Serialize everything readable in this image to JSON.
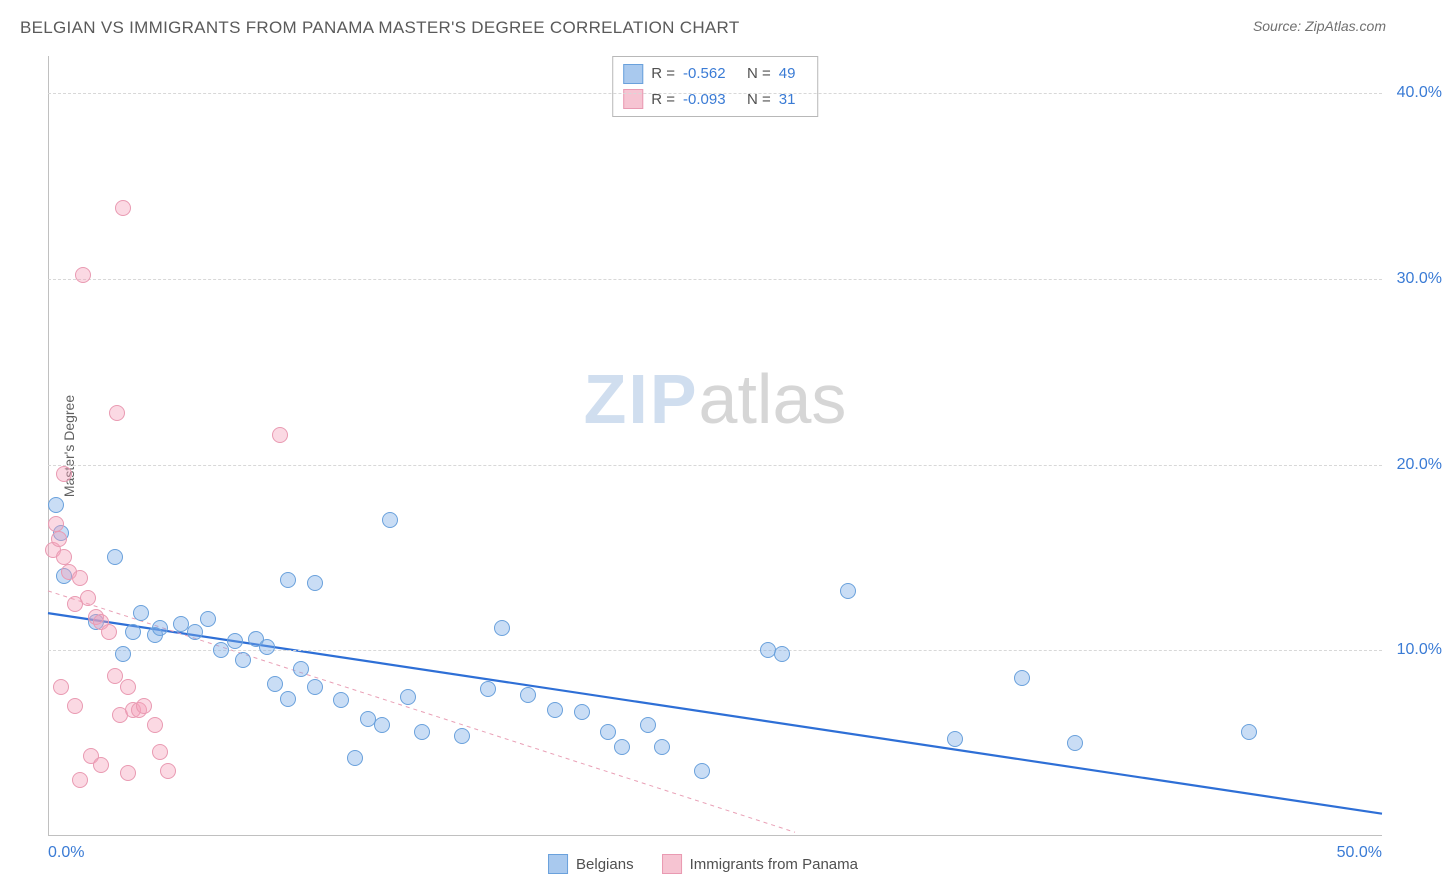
{
  "header": {
    "title": "BELGIAN VS IMMIGRANTS FROM PANAMA MASTER'S DEGREE CORRELATION CHART",
    "source": "Source: ZipAtlas.com"
  },
  "watermark": {
    "zip": "ZIP",
    "atlas": "atlas"
  },
  "chart": {
    "type": "scatter",
    "ylabel": "Master's Degree",
    "xlim": [
      0,
      50
    ],
    "ylim": [
      0,
      42
    ],
    "x_ticks": [
      {
        "pos": 0,
        "label": "0.0%",
        "align": "left"
      },
      {
        "pos": 50,
        "label": "50.0%",
        "align": "right"
      }
    ],
    "y_ticks": [
      {
        "pos": 10,
        "label": "10.0%"
      },
      {
        "pos": 20,
        "label": "20.0%"
      },
      {
        "pos": 30,
        "label": "30.0%"
      },
      {
        "pos": 40,
        "label": "40.0%"
      }
    ],
    "grid_color": "#d8d8d8",
    "background_color": "#ffffff",
    "axis_color": "#c0c0c0",
    "tick_color": "#3a7bd5",
    "label_color": "#606060",
    "marker_radius": 8,
    "marker_stroke_width": 1,
    "series": [
      {
        "key": "belgians",
        "name": "Belgians",
        "fill": "rgba(120,170,230,0.40)",
        "stroke": "#6aa1dc",
        "swatch_fill": "#a9c9ee",
        "swatch_stroke": "#6aa1dc",
        "R_label": "R =",
        "R": "-0.562",
        "N_label": "N =",
        "N": "49",
        "trend": {
          "x1": 0,
          "y1": 12.0,
          "x2": 50,
          "y2": 1.2,
          "stroke": "#2e6fd6",
          "width": 2.2,
          "dash": ""
        },
        "points": [
          [
            0.3,
            17.8
          ],
          [
            0.5,
            16.3
          ],
          [
            2.5,
            15.0
          ],
          [
            9.0,
            13.8
          ],
          [
            10.0,
            13.6
          ],
          [
            12.8,
            17.0
          ],
          [
            30.0,
            13.2
          ],
          [
            0.6,
            14.0
          ],
          [
            1.8,
            11.5
          ],
          [
            2.8,
            9.8
          ],
          [
            3.2,
            11.0
          ],
          [
            3.5,
            12.0
          ],
          [
            4.0,
            10.8
          ],
          [
            4.2,
            11.2
          ],
          [
            5.0,
            11.4
          ],
          [
            5.5,
            11.0
          ],
          [
            6.0,
            11.7
          ],
          [
            6.5,
            10.0
          ],
          [
            7.0,
            10.5
          ],
          [
            7.3,
            9.5
          ],
          [
            7.8,
            10.6
          ],
          [
            8.2,
            10.2
          ],
          [
            8.5,
            8.2
          ],
          [
            9.0,
            7.4
          ],
          [
            9.5,
            9.0
          ],
          [
            10.0,
            8.0
          ],
          [
            11.0,
            7.3
          ],
          [
            11.5,
            4.2
          ],
          [
            12.0,
            6.3
          ],
          [
            12.5,
            6.0
          ],
          [
            13.5,
            7.5
          ],
          [
            14.0,
            5.6
          ],
          [
            15.5,
            5.4
          ],
          [
            16.5,
            7.9
          ],
          [
            17.0,
            11.2
          ],
          [
            18.0,
            7.6
          ],
          [
            19.0,
            6.8
          ],
          [
            20.0,
            6.7
          ],
          [
            21.0,
            5.6
          ],
          [
            21.5,
            4.8
          ],
          [
            22.5,
            6.0
          ],
          [
            23.0,
            4.8
          ],
          [
            24.5,
            3.5
          ],
          [
            27.0,
            10.0
          ],
          [
            27.5,
            9.8
          ],
          [
            34.0,
            5.2
          ],
          [
            36.5,
            8.5
          ],
          [
            38.5,
            5.0
          ],
          [
            45.0,
            5.6
          ]
        ]
      },
      {
        "key": "panama",
        "name": "Immigrants from Panama",
        "fill": "rgba(245,160,185,0.40)",
        "stroke": "#e99ab2",
        "swatch_fill": "#f6c4d2",
        "swatch_stroke": "#e99ab2",
        "R_label": "R =",
        "R": "-0.093",
        "N_label": "N =",
        "N": "31",
        "trend": {
          "x1": 0,
          "y1": 13.2,
          "x2": 28,
          "y2": 0.2,
          "stroke": "#e9a0b6",
          "width": 1,
          "dash": "4 4"
        },
        "points": [
          [
            2.8,
            33.8
          ],
          [
            1.3,
            30.2
          ],
          [
            2.6,
            22.8
          ],
          [
            8.7,
            21.6
          ],
          [
            0.6,
            19.5
          ],
          [
            0.3,
            16.8
          ],
          [
            0.2,
            15.4
          ],
          [
            0.4,
            16.0
          ],
          [
            0.6,
            15.0
          ],
          [
            0.8,
            14.2
          ],
          [
            1.2,
            13.9
          ],
          [
            1.0,
            12.5
          ],
          [
            1.5,
            12.8
          ],
          [
            1.8,
            11.8
          ],
          [
            2.0,
            11.5
          ],
          [
            2.3,
            11.0
          ],
          [
            0.5,
            8.0
          ],
          [
            1.0,
            7.0
          ],
          [
            2.5,
            8.6
          ],
          [
            2.7,
            6.5
          ],
          [
            3.0,
            8.0
          ],
          [
            3.2,
            6.8
          ],
          [
            3.4,
            6.8
          ],
          [
            3.6,
            7.0
          ],
          [
            4.0,
            6.0
          ],
          [
            4.2,
            4.5
          ],
          [
            1.6,
            4.3
          ],
          [
            2.0,
            3.8
          ],
          [
            3.0,
            3.4
          ],
          [
            4.5,
            3.5
          ],
          [
            1.2,
            3.0
          ]
        ]
      }
    ],
    "bottom_legend": [
      {
        "series": "belgians"
      },
      {
        "series": "panama"
      }
    ]
  }
}
